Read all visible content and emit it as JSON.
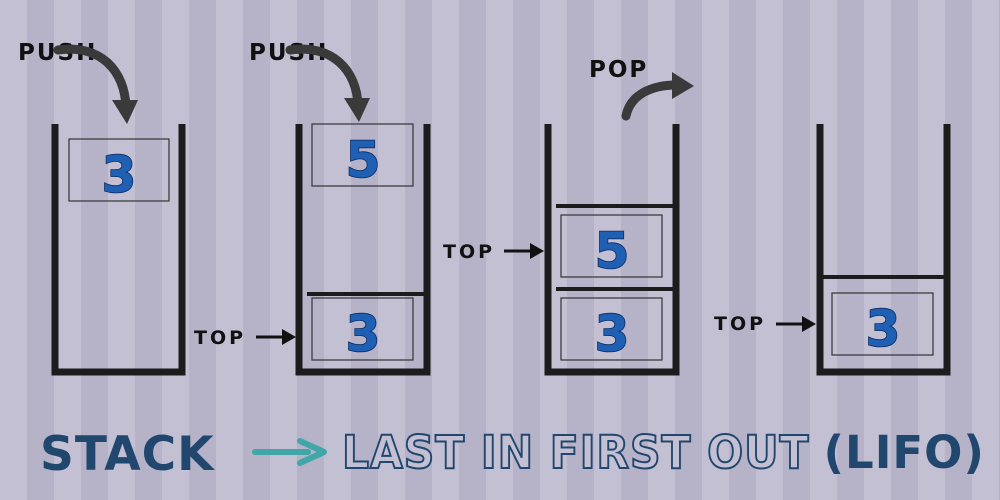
{
  "operations": {
    "push_1": "PUSH",
    "push_2": "PUSH",
    "pop": "POP"
  },
  "stacks": [
    {
      "items": [
        "3"
      ]
    },
    {
      "items": [
        "5",
        "3"
      ],
      "top_label": "TOP"
    },
    {
      "items": [
        "5",
        "3"
      ],
      "top_label": "TOP"
    },
    {
      "items": [
        "3"
      ],
      "top_label": "TOP"
    }
  ],
  "title": {
    "main": "STACK",
    "sub": "LAST IN FIRST OUT",
    "paren": "(LIFO)"
  },
  "colors": {
    "stripe_light": "#c4c0d3",
    "stripe_dark": "#b6b2c7",
    "container_stroke": "#1c1c1c",
    "digit_fill": "#1f5fb4",
    "title_navy": "#22476e",
    "teal_arrow": "#3fa7a7"
  }
}
